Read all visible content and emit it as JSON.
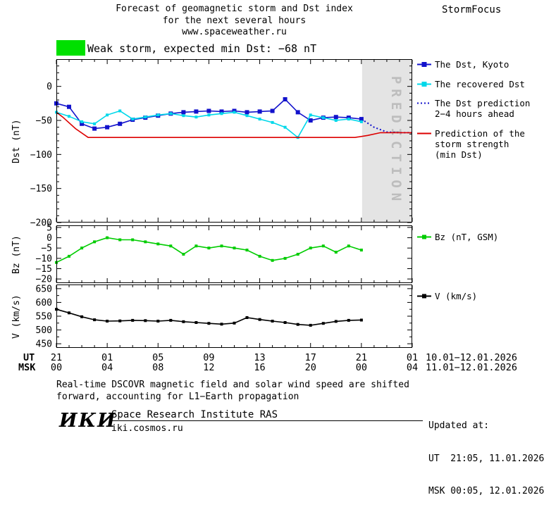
{
  "header": {
    "line1": "Forecast of geomagnetic storm and Dst index",
    "line2": "for the next several hours",
    "line3": "www.spaceweather.ru",
    "brand": "StormFocus"
  },
  "status": {
    "label": "Weak storm, expected min Dst: −68 nT",
    "swatch_color": "#00e000"
  },
  "legend_main": [
    {
      "label": "The Dst, Kyoto",
      "color": "#1212cc",
      "style": "square-line"
    },
    {
      "label": "The recovered Dst",
      "color": "#00d8ea",
      "style": "square-line"
    },
    {
      "label": "The Dst prediction\n2−4 hours ahead",
      "color": "#1212cc",
      "style": "dotted"
    },
    {
      "label": "Prediction of the\nstorm strength\n(min Dst)",
      "color": "#dd0000",
      "style": "solid"
    }
  ],
  "legend_bz": {
    "label": "Bz (nT, GSM)",
    "color": "#00cc00"
  },
  "legend_v": {
    "label": "V (km/s)",
    "color": "#000000"
  },
  "xaxis": {
    "ut_label": "UT",
    "msk_label": "MSK",
    "ut_ticks": [
      "21",
      "01",
      "05",
      "09",
      "13",
      "17",
      "21",
      "01"
    ],
    "msk_ticks": [
      "00",
      "04",
      "08",
      "12",
      "16",
      "20",
      "00",
      "04"
    ],
    "ut_range": "10.01−12.01.2026",
    "msk_range": "11.01−12.01.2026"
  },
  "footnote": "Real-time DSCOVR magnetic field and solar wind speed are shifted\nforward, accounting for L1−Earth propagation",
  "updated": {
    "title": "Updated at:",
    "ut": "UT  21:05, 11.01.2026",
    "msk": "MSK 00:05, 12.01.2026"
  },
  "footer": {
    "logo": "ИКИ",
    "institute": "Space Research Institute RAS",
    "site": "iki.cosmos.ru"
  },
  "chart_data": [
    {
      "id": "dst",
      "type": "line",
      "ylabel": "Dst (nT)",
      "xlabel_hours_from_21UT": true,
      "xlim": [
        0,
        28
      ],
      "ylim": [
        -200,
        40
      ],
      "yticks": [
        0,
        -50,
        -100,
        -150,
        -200
      ],
      "ytick_labels": [
        "0",
        "−50",
        "−100",
        "−150",
        "−200"
      ],
      "yminor_step": 10,
      "xtick_hours": [
        0,
        4,
        8,
        12,
        16,
        20,
        24,
        28
      ],
      "prediction_region": {
        "from": 24,
        "to": 28,
        "label": "PREDICTION",
        "fill": "#e4e4e4",
        "text_color": "#bdbdbd"
      },
      "series": [
        {
          "name": "The Dst, Kyoto",
          "color": "#1212cc",
          "marker": "square",
          "marker_size": 6,
          "line": "solid",
          "x": [
            0,
            1,
            2,
            3,
            4,
            5,
            6,
            7,
            8,
            9,
            10,
            11,
            12,
            13,
            14,
            15,
            16,
            17,
            18,
            19,
            20,
            21,
            22,
            23,
            24
          ],
          "y": [
            -25,
            -30,
            -55,
            -62,
            -60,
            -55,
            -49,
            -46,
            -43,
            -40,
            -38,
            -37,
            -36,
            -37,
            -36,
            -38,
            -37,
            -36,
            -19,
            -38,
            -50,
            -46,
            -45,
            -46,
            -48
          ]
        },
        {
          "name": "The recovered Dst",
          "color": "#00d8ea",
          "marker": "square",
          "marker_size": 4,
          "line": "solid",
          "x": [
            0,
            1,
            2,
            3,
            4,
            5,
            6,
            7,
            8,
            9,
            10,
            11,
            12,
            13,
            14,
            15,
            16,
            17,
            18,
            19,
            20,
            21,
            22,
            23,
            24
          ],
          "y": [
            -38,
            -44,
            -52,
            -55,
            -42,
            -36,
            -48,
            -45,
            -42,
            -40,
            -43,
            -45,
            -42,
            -40,
            -38,
            -43,
            -48,
            -53,
            -60,
            -75,
            -42,
            -46,
            -50,
            -48,
            -52
          ]
        },
        {
          "name": "The Dst prediction 2−4 hours ahead",
          "color": "#1212cc",
          "marker": "none",
          "line": "dotted",
          "x": [
            24,
            25,
            26,
            27,
            28
          ],
          "y": [
            -48,
            -60,
            -67,
            -68,
            -68
          ]
        },
        {
          "name": "Prediction of the storm strength (min Dst)",
          "color": "#dd0000",
          "marker": "none",
          "line": "solid",
          "x": [
            0,
            0.5,
            1.5,
            2.5,
            23.5,
            24.5,
            25.5,
            28
          ],
          "y": [
            -38,
            -45,
            -62,
            -75,
            -75,
            -72,
            -68,
            -68
          ]
        }
      ]
    },
    {
      "id": "bz",
      "type": "line",
      "ylabel": "Bz (nT)",
      "xlim": [
        0,
        28
      ],
      "ylim": [
        -22,
        6
      ],
      "yticks": [
        5,
        0,
        -5,
        -10,
        -15,
        -20
      ],
      "ytick_labels": [
        "5",
        "0",
        "−5",
        "−10",
        "−15",
        "−20"
      ],
      "xtick_hours": [
        0,
        4,
        8,
        12,
        16,
        20,
        24,
        28
      ],
      "series": [
        {
          "name": "Bz (nT, GSM)",
          "color": "#00cc00",
          "marker": "square",
          "marker_size": 4,
          "line": "solid",
          "x": [
            0,
            1,
            2,
            3,
            4,
            5,
            6,
            7,
            8,
            9,
            10,
            11,
            12,
            13,
            14,
            15,
            16,
            17,
            18,
            19,
            20,
            21,
            22,
            23,
            24
          ],
          "y": [
            -12,
            -9,
            -5,
            -2,
            0,
            -1,
            -1,
            -2,
            -3,
            -4,
            -8,
            -4,
            -5,
            -4,
            -5,
            -6,
            -9,
            -11,
            -10,
            -8,
            -5,
            -4,
            -7,
            -4,
            -6
          ]
        }
      ]
    },
    {
      "id": "v",
      "type": "line",
      "ylabel": "V (km/s)",
      "xlim": [
        0,
        28
      ],
      "ylim": [
        435,
        665
      ],
      "yticks": [
        650,
        600,
        550,
        500,
        450
      ],
      "ytick_labels": [
        "650",
        "600",
        "550",
        "500",
        "450"
      ],
      "yminor_step": 25,
      "xtick_hours": [
        0,
        4,
        8,
        12,
        16,
        20,
        24,
        28
      ],
      "series": [
        {
          "name": "V (km/s)",
          "color": "#000000",
          "marker": "square",
          "marker_size": 4,
          "line": "solid",
          "x": [
            0,
            1,
            2,
            3,
            4,
            5,
            6,
            7,
            8,
            9,
            10,
            11,
            12,
            13,
            14,
            15,
            16,
            17,
            18,
            19,
            20,
            21,
            22,
            23,
            24
          ],
          "y": [
            575,
            562,
            548,
            537,
            532,
            533,
            535,
            534,
            532,
            535,
            530,
            527,
            524,
            521,
            525,
            545,
            538,
            532,
            527,
            520,
            517,
            524,
            531,
            535,
            536
          ]
        }
      ]
    }
  ]
}
